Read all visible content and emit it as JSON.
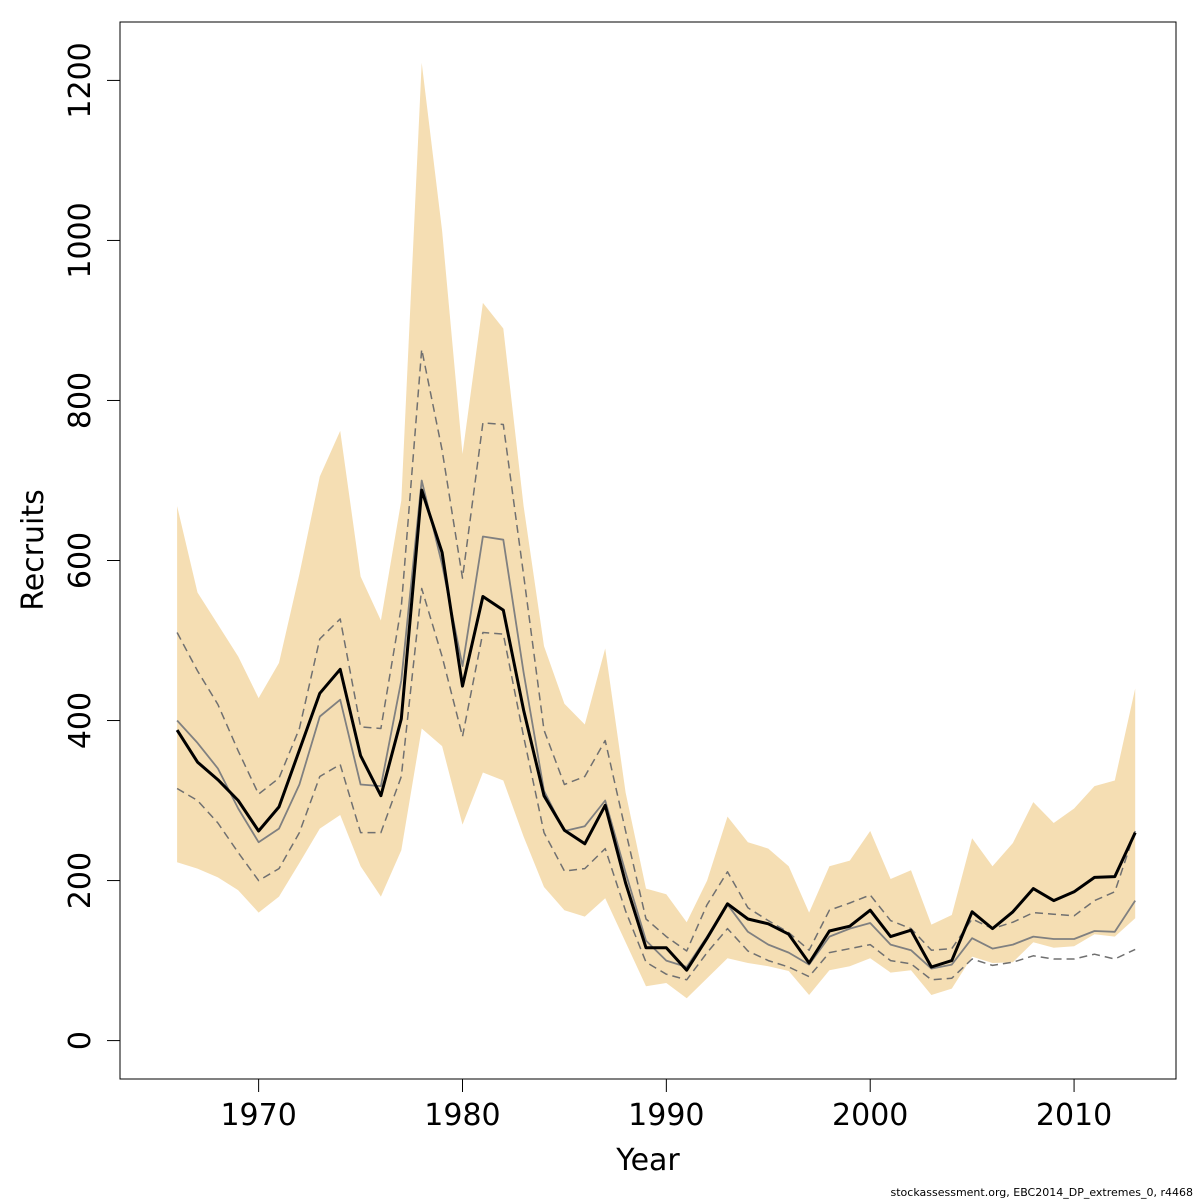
{
  "chart_data": {
    "type": "area",
    "xlabel": "Year",
    "ylabel": "Recruits",
    "xlim": [
      1963.2,
      2015.0
    ],
    "ylim": [
      -48,
      1273
    ],
    "x_ticks": [
      1970,
      1980,
      1990,
      2000,
      2010
    ],
    "y_ticks": [
      0,
      200,
      400,
      600,
      800,
      1000,
      1200
    ],
    "colors": {
      "band": "#f5deb3",
      "median": "#000000",
      "mean": "#808080",
      "quantile": "#707070"
    },
    "grid": false,
    "x": [
      1966,
      1967,
      1968,
      1969,
      1970,
      1971,
      1972,
      1973,
      1974,
      1975,
      1976,
      1977,
      1978,
      1979,
      1980,
      1981,
      1982,
      1983,
      1984,
      1985,
      1986,
      1987,
      1988,
      1989,
      1990,
      1991,
      1992,
      1993,
      1994,
      1995,
      1996,
      1997,
      1998,
      1999,
      2000,
      2001,
      2002,
      2003,
      2004,
      2005,
      2006,
      2007,
      2008,
      2009,
      2010,
      2011,
      2012,
      2013
    ],
    "band_upper": [
      668,
      560,
      520,
      480,
      428,
      472,
      583,
      705,
      762,
      580,
      525,
      675,
      1222,
      1012,
      733,
      922,
      890,
      668,
      493,
      421,
      395,
      490,
      310,
      190,
      183,
      148,
      200,
      280,
      248,
      240,
      218,
      160,
      218,
      225,
      262,
      202,
      213,
      145,
      157,
      253,
      218,
      247,
      298,
      272,
      290,
      318,
      325,
      440
    ],
    "band_lower": [
      223,
      215,
      204,
      188,
      160,
      180,
      222,
      265,
      282,
      218,
      180,
      238,
      390,
      368,
      270,
      335,
      325,
      255,
      192,
      163,
      155,
      178,
      123,
      68,
      72,
      53,
      78,
      103,
      97,
      93,
      87,
      57,
      88,
      93,
      103,
      85,
      88,
      57,
      65,
      105,
      97,
      98,
      123,
      116,
      118,
      133,
      130,
      153
    ],
    "series": [
      {
        "role": "median",
        "values": [
          388,
          348,
          326,
          300,
          262,
          292,
          363,
          434,
          464,
          356,
          306,
          402,
          688,
          610,
          443,
          555,
          538,
          413,
          306,
          263,
          246,
          294,
          197,
          116,
          116,
          88,
          128,
          171,
          152,
          146,
          133,
          97,
          137,
          143,
          163,
          130,
          138,
          92,
          100,
          161,
          140,
          161,
          190,
          175,
          186,
          204,
          205,
          260
        ]
      },
      {
        "role": "mean",
        "values": [
          400,
          372,
          340,
          290,
          248,
          265,
          320,
          405,
          426,
          320,
          318,
          450,
          700,
          595,
          468,
          630,
          626,
          460,
          312,
          262,
          268,
          300,
          210,
          125,
          100,
          92,
          130,
          170,
          136,
          120,
          110,
          95,
          130,
          140,
          147,
          120,
          113,
          90,
          95,
          128,
          115,
          120,
          130,
          127,
          127,
          137,
          136,
          175
        ]
      },
      {
        "role": "upper-quantile",
        "values": [
          510,
          462,
          420,
          362,
          308,
          328,
          390,
          502,
          527,
          392,
          390,
          542,
          864,
          738,
          578,
          772,
          770,
          582,
          388,
          320,
          330,
          375,
          262,
          152,
          130,
          112,
          170,
          211,
          166,
          150,
          135,
          113,
          163,
          172,
          182,
          150,
          140,
          113,
          115,
          152,
          140,
          148,
          160,
          158,
          156,
          175,
          186,
          262
        ]
      },
      {
        "role": "lower-quantile",
        "values": [
          315,
          300,
          272,
          235,
          200,
          215,
          260,
          330,
          345,
          260,
          260,
          330,
          565,
          480,
          380,
          510,
          508,
          380,
          260,
          212,
          215,
          240,
          162,
          98,
          83,
          76,
          110,
          140,
          112,
          100,
          92,
          80,
          110,
          115,
          120,
          100,
          96,
          76,
          78,
          102,
          94,
          98,
          106,
          102,
          102,
          108,
          102,
          114
        ]
      }
    ]
  },
  "footer_text": "stockassessment.org, EBC2014_DP_extremes_0, r4468"
}
